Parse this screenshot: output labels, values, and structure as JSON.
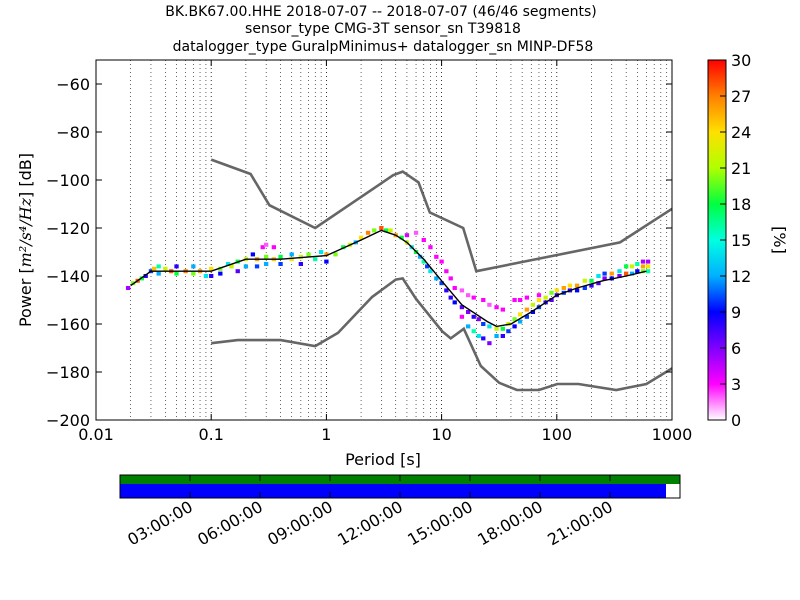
{
  "chart_data": {
    "type": "heatmap",
    "title_lines": [
      "BK.BK67.00.HHE   2018-07-07 -- 2018-07-07  (46/46 segments)",
      "sensor_type CMG-3T sensor_sn T39818",
      "datalogger_type GuralpMinimus+ datalogger_sn MINP-DF58"
    ],
    "xlabel": "Period [s]",
    "ylabel_prefix": "Power [",
    "ylabel_math": "m²/s⁴/Hz",
    "ylabel_suffix": "] [dB]",
    "x_scale": "log",
    "xlim": [
      0.01,
      1000
    ],
    "ylim": [
      -200,
      -50
    ],
    "x_ticks": [
      {
        "value": 0.01,
        "label": "0.01"
      },
      {
        "value": 0.1,
        "label": "0.1"
      },
      {
        "value": 1,
        "label": "1"
      },
      {
        "value": 10,
        "label": "10"
      },
      {
        "value": 100,
        "label": "100"
      },
      {
        "value": 1000,
        "label": "1000"
      }
    ],
    "y_ticks": [
      {
        "value": -60,
        "label": "−60"
      },
      {
        "value": -80,
        "label": "−80"
      },
      {
        "value": -100,
        "label": "−100"
      },
      {
        "value": -120,
        "label": "−120"
      },
      {
        "value": -140,
        "label": "−140"
      },
      {
        "value": -160,
        "label": "−160"
      },
      {
        "value": -180,
        "label": "−180"
      },
      {
        "value": -200,
        "label": "−200"
      }
    ],
    "grid": "dotted, x major and minor",
    "colorbar": {
      "label": "[%]",
      "range": [
        0,
        30
      ],
      "ticks": [
        {
          "value": 0,
          "label": "0"
        },
        {
          "value": 3,
          "label": "3"
        },
        {
          "value": 6,
          "label": "6"
        },
        {
          "value": 9,
          "label": "9"
        },
        {
          "value": 12,
          "label": "12"
        },
        {
          "value": 15,
          "label": "15"
        },
        {
          "value": 18,
          "label": "18"
        },
        {
          "value": 21,
          "label": "21"
        },
        {
          "value": 24,
          "label": "24"
        },
        {
          "value": 27,
          "label": "27"
        },
        {
          "value": 30,
          "label": "30"
        }
      ],
      "colormap": [
        "#ffffff",
        "#ff00ff",
        "#8000ff",
        "#0000ff",
        "#00b0ff",
        "#00ffe0",
        "#00ff40",
        "#b0ff00",
        "#ffe000",
        "#ff8000",
        "#ff0000"
      ]
    },
    "noise_model_high": {
      "color": "#666666",
      "points": [
        [
          0.1,
          -91.5
        ],
        [
          0.22,
          -97.5
        ],
        [
          0.32,
          -110.5
        ],
        [
          0.8,
          -120
        ],
        [
          3.8,
          -98
        ],
        [
          4.6,
          -96.5
        ],
        [
          6.3,
          -101
        ],
        [
          7.9,
          -113.5
        ],
        [
          15.4,
          -120
        ],
        [
          20,
          -138
        ],
        [
          354,
          -126
        ],
        [
          1000,
          -112
        ]
      ]
    },
    "noise_model_low": {
      "color": "#666666",
      "points": [
        [
          0.1,
          -168
        ],
        [
          0.17,
          -166.7
        ],
        [
          0.4,
          -166.7
        ],
        [
          0.8,
          -169.2
        ],
        [
          1.26,
          -163.7
        ],
        [
          2.5,
          -148.7
        ],
        [
          4,
          -141.5
        ],
        [
          4.6,
          -141
        ],
        [
          6,
          -149.5
        ],
        [
          10.1,
          -163
        ],
        [
          12,
          -166
        ],
        [
          15.6,
          -162
        ],
        [
          21.9,
          -177.5
        ],
        [
          31.6,
          -184.5
        ],
        [
          45,
          -187.5
        ],
        [
          70,
          -187.5
        ],
        [
          101,
          -185
        ],
        [
          154,
          -185
        ],
        [
          328,
          -187.5
        ],
        [
          600,
          -185
        ],
        [
          1000,
          -178.5
        ]
      ]
    },
    "mode_curve": {
      "color": "#000000",
      "points": [
        [
          0.02,
          -144
        ],
        [
          0.03,
          -138
        ],
        [
          0.05,
          -138
        ],
        [
          0.1,
          -138
        ],
        [
          0.2,
          -133
        ],
        [
          0.4,
          -133
        ],
        [
          1,
          -131.5
        ],
        [
          2,
          -125
        ],
        [
          3,
          -121
        ],
        [
          4,
          -123
        ],
        [
          5,
          -126
        ],
        [
          7,
          -133
        ],
        [
          10,
          -142
        ],
        [
          15,
          -152
        ],
        [
          25,
          -159
        ],
        [
          30,
          -161
        ],
        [
          40,
          -160
        ],
        [
          60,
          -155
        ],
        [
          100,
          -148
        ],
        [
          150,
          -145
        ],
        [
          250,
          -142
        ],
        [
          400,
          -140
        ],
        [
          600,
          -138
        ]
      ]
    },
    "percentile_cells": [
      {
        "period": 0.019,
        "db": -145,
        "pct": 5
      },
      {
        "period": 0.021,
        "db": -143,
        "pct": 20
      },
      {
        "period": 0.023,
        "db": -142,
        "pct": 28
      },
      {
        "period": 0.025,
        "db": -141,
        "pct": 18
      },
      {
        "period": 0.027,
        "db": -140,
        "pct": 8
      },
      {
        "period": 0.03,
        "db": -138,
        "pct": 10
      },
      {
        "period": 0.032,
        "db": -137,
        "pct": 25
      },
      {
        "period": 0.035,
        "db": -136,
        "pct": 16
      },
      {
        "period": 0.035,
        "db": -139,
        "pct": 12
      },
      {
        "period": 0.04,
        "db": -137,
        "pct": 22
      },
      {
        "period": 0.045,
        "db": -138,
        "pct": 28
      },
      {
        "period": 0.05,
        "db": -139,
        "pct": 18
      },
      {
        "period": 0.05,
        "db": -136,
        "pct": 8
      },
      {
        "period": 0.06,
        "db": -138,
        "pct": 27
      },
      {
        "period": 0.07,
        "db": -139,
        "pct": 20
      },
      {
        "period": 0.07,
        "db": -136,
        "pct": 12
      },
      {
        "period": 0.08,
        "db": -138,
        "pct": 26
      },
      {
        "period": 0.09,
        "db": -140,
        "pct": 14
      },
      {
        "period": 0.1,
        "db": -137,
        "pct": 24
      },
      {
        "period": 0.1,
        "db": -140,
        "pct": 8
      },
      {
        "period": 0.12,
        "db": -137,
        "pct": 20
      },
      {
        "period": 0.12,
        "db": -139,
        "pct": 9
      },
      {
        "period": 0.14,
        "db": -135,
        "pct": 14
      },
      {
        "period": 0.15,
        "db": -136,
        "pct": 22
      },
      {
        "period": 0.17,
        "db": -134,
        "pct": 18
      },
      {
        "period": 0.17,
        "db": -138,
        "pct": 7
      },
      {
        "period": 0.2,
        "db": -133,
        "pct": 22
      },
      {
        "period": 0.2,
        "db": -136,
        "pct": 12
      },
      {
        "period": 0.23,
        "db": -131,
        "pct": 9
      },
      {
        "period": 0.25,
        "db": -133,
        "pct": 26
      },
      {
        "period": 0.25,
        "db": -136,
        "pct": 10
      },
      {
        "period": 0.28,
        "db": -128,
        "pct": 3
      },
      {
        "period": 0.3,
        "db": -132,
        "pct": 20
      },
      {
        "period": 0.3,
        "db": -135,
        "pct": 12
      },
      {
        "period": 0.3,
        "db": -127,
        "pct": 2
      },
      {
        "period": 0.35,
        "db": -133,
        "pct": 25
      },
      {
        "period": 0.35,
        "db": -128,
        "pct": 3
      },
      {
        "period": 0.4,
        "db": -132,
        "pct": 18
      },
      {
        "period": 0.4,
        "db": -135,
        "pct": 10
      },
      {
        "period": 0.5,
        "db": -133,
        "pct": 24
      },
      {
        "period": 0.5,
        "db": -131,
        "pct": 12
      },
      {
        "period": 0.6,
        "db": -132,
        "pct": 22
      },
      {
        "period": 0.6,
        "db": -135,
        "pct": 8
      },
      {
        "period": 0.7,
        "db": -131,
        "pct": 20
      },
      {
        "period": 0.8,
        "db": -133,
        "pct": 16
      },
      {
        "period": 0.9,
        "db": -130,
        "pct": 14
      },
      {
        "period": 1.0,
        "db": -131,
        "pct": 26
      },
      {
        "period": 1.0,
        "db": -134,
        "pct": 9
      },
      {
        "period": 1.2,
        "db": -131,
        "pct": 20
      },
      {
        "period": 1.4,
        "db": -128,
        "pct": 18
      },
      {
        "period": 1.6,
        "db": -127,
        "pct": 22
      },
      {
        "period": 1.8,
        "db": -126,
        "pct": 12
      },
      {
        "period": 2.0,
        "db": -124,
        "pct": 24
      },
      {
        "period": 2.3,
        "db": -122,
        "pct": 27
      },
      {
        "period": 2.6,
        "db": -121,
        "pct": 20
      },
      {
        "period": 3.0,
        "db": -120,
        "pct": 28
      },
      {
        "period": 3.3,
        "db": -121,
        "pct": 18
      },
      {
        "period": 3.6,
        "db": -121,
        "pct": 22
      },
      {
        "period": 4.0,
        "db": -123,
        "pct": 26
      },
      {
        "period": 4.5,
        "db": -124,
        "pct": 18
      },
      {
        "period": 5.0,
        "db": -126,
        "pct": 22
      },
      {
        "period": 5.0,
        "db": -123,
        "pct": 4
      },
      {
        "period": 5.5,
        "db": -128,
        "pct": 14
      },
      {
        "period": 6.0,
        "db": -130,
        "pct": 18
      },
      {
        "period": 6.0,
        "db": -122,
        "pct": 2
      },
      {
        "period": 6.5,
        "db": -132,
        "pct": 12
      },
      {
        "period": 7.0,
        "db": -134,
        "pct": 16
      },
      {
        "period": 7.0,
        "db": -125,
        "pct": 3
      },
      {
        "period": 7.5,
        "db": -136,
        "pct": 10
      },
      {
        "period": 8.0,
        "db": -138,
        "pct": 14
      },
      {
        "period": 8.0,
        "db": -128,
        "pct": 3
      },
      {
        "period": 9.0,
        "db": -141,
        "pct": 12
      },
      {
        "period": 9.0,
        "db": -132,
        "pct": 3
      },
      {
        "period": 10,
        "db": -143,
        "pct": 10
      },
      {
        "period": 10,
        "db": -134,
        "pct": 3
      },
      {
        "period": 11,
        "db": -146,
        "pct": 8
      },
      {
        "period": 11,
        "db": -138,
        "pct": 3
      },
      {
        "period": 12,
        "db": -149,
        "pct": 8
      },
      {
        "period": 12,
        "db": -141,
        "pct": 3
      },
      {
        "period": 13,
        "db": -151,
        "pct": 9
      },
      {
        "period": 13,
        "db": -145,
        "pct": 3
      },
      {
        "period": 15,
        "db": -153,
        "pct": 7
      },
      {
        "period": 15,
        "db": -146,
        "pct": 2
      },
      {
        "period": 15,
        "db": -157,
        "pct": 3
      },
      {
        "period": 17,
        "db": -155,
        "pct": 6
      },
      {
        "period": 17,
        "db": -161,
        "pct": 12
      },
      {
        "period": 17,
        "db": -148,
        "pct": 2
      },
      {
        "period": 19,
        "db": -157,
        "pct": 8
      },
      {
        "period": 19,
        "db": -163,
        "pct": 16
      },
      {
        "period": 19,
        "db": -149,
        "pct": 3
      },
      {
        "period": 21,
        "db": -158,
        "pct": 6
      },
      {
        "period": 21,
        "db": -165,
        "pct": 14
      },
      {
        "period": 23,
        "db": -160,
        "pct": 10
      },
      {
        "period": 23,
        "db": -166,
        "pct": 8
      },
      {
        "period": 23,
        "db": -150,
        "pct": 3
      },
      {
        "period": 26,
        "db": -161,
        "pct": 14
      },
      {
        "period": 26,
        "db": -168,
        "pct": 6
      },
      {
        "period": 26,
        "db": -152,
        "pct": 2
      },
      {
        "period": 30,
        "db": -162,
        "pct": 22
      },
      {
        "period": 30,
        "db": -165,
        "pct": 12
      },
      {
        "period": 30,
        "db": -153,
        "pct": 3
      },
      {
        "period": 34,
        "db": -162,
        "pct": 18
      },
      {
        "period": 34,
        "db": -165,
        "pct": 8
      },
      {
        "period": 34,
        "db": -154,
        "pct": 3
      },
      {
        "period": 38,
        "db": -160,
        "pct": 22
      },
      {
        "period": 38,
        "db": -163,
        "pct": 10
      },
      {
        "period": 43,
        "db": -158,
        "pct": 20
      },
      {
        "period": 43,
        "db": -161,
        "pct": 9
      },
      {
        "period": 43,
        "db": -150,
        "pct": 3
      },
      {
        "period": 48,
        "db": -156,
        "pct": 24
      },
      {
        "period": 48,
        "db": -159,
        "pct": 12
      },
      {
        "period": 48,
        "db": -150,
        "pct": 3
      },
      {
        "period": 55,
        "db": -154,
        "pct": 26
      },
      {
        "period": 55,
        "db": -157,
        "pct": 10
      },
      {
        "period": 55,
        "db": -149,
        "pct": 3
      },
      {
        "period": 62,
        "db": -152,
        "pct": 22
      },
      {
        "period": 62,
        "db": -155,
        "pct": 9
      },
      {
        "period": 70,
        "db": -150,
        "pct": 24
      },
      {
        "period": 70,
        "db": -153,
        "pct": 10
      },
      {
        "period": 70,
        "db": -148,
        "pct": 3
      },
      {
        "period": 80,
        "db": -149,
        "pct": 22
      },
      {
        "period": 80,
        "db": -151,
        "pct": 8
      },
      {
        "period": 90,
        "db": -147,
        "pct": 20
      },
      {
        "period": 90,
        "db": -150,
        "pct": 7
      },
      {
        "period": 100,
        "db": -146,
        "pct": 24
      },
      {
        "period": 100,
        "db": -148,
        "pct": 8
      },
      {
        "period": 115,
        "db": -145,
        "pct": 26
      },
      {
        "period": 115,
        "db": -147,
        "pct": 10
      },
      {
        "period": 130,
        "db": -144,
        "pct": 24
      },
      {
        "period": 130,
        "db": -146,
        "pct": 8
      },
      {
        "period": 150,
        "db": -144,
        "pct": 26
      },
      {
        "period": 150,
        "db": -146,
        "pct": 9
      },
      {
        "period": 175,
        "db": -142,
        "pct": 22
      },
      {
        "period": 175,
        "db": -145,
        "pct": 10
      },
      {
        "period": 200,
        "db": -142,
        "pct": 18
      },
      {
        "period": 200,
        "db": -144,
        "pct": 8
      },
      {
        "period": 230,
        "db": -140,
        "pct": 14
      },
      {
        "period": 230,
        "db": -143,
        "pct": 7
      },
      {
        "period": 260,
        "db": -139,
        "pct": 10
      },
      {
        "period": 260,
        "db": -141,
        "pct": 6
      },
      {
        "period": 300,
        "db": -139,
        "pct": 26
      },
      {
        "period": 300,
        "db": -141,
        "pct": 9
      },
      {
        "period": 350,
        "db": -138,
        "pct": 14
      },
      {
        "period": 350,
        "db": -140,
        "pct": 6
      },
      {
        "period": 400,
        "db": -136,
        "pct": 18
      },
      {
        "period": 400,
        "db": -139,
        "pct": 28
      },
      {
        "period": 450,
        "db": -136,
        "pct": 22
      },
      {
        "period": 450,
        "db": -139,
        "pct": 12
      },
      {
        "period": 500,
        "db": -135,
        "pct": 16
      },
      {
        "period": 500,
        "db": -138,
        "pct": 9
      },
      {
        "period": 560,
        "db": -134,
        "pct": 5
      },
      {
        "period": 560,
        "db": -136,
        "pct": 26
      },
      {
        "period": 560,
        "db": -138,
        "pct": 20
      },
      {
        "period": 620,
        "db": -134,
        "pct": 5
      },
      {
        "period": 620,
        "db": -136,
        "pct": 24
      },
      {
        "period": 620,
        "db": -138,
        "pct": 16
      }
    ],
    "coverage": {
      "time_ticks": [
        "03:00:00",
        "06:00:00",
        "09:00:00",
        "12:00:00",
        "15:00:00",
        "18:00:00",
        "21:00:00"
      ],
      "total_hours": 24,
      "tick_hours": [
        3,
        6,
        9,
        12,
        15,
        18,
        21
      ],
      "top_bar": {
        "color": "#008000",
        "start_hours": 0,
        "end_hours": 24
      },
      "bottom_bar": {
        "color": "#0000ff",
        "start_hours": 0,
        "end_hours": 23.4
      }
    }
  }
}
